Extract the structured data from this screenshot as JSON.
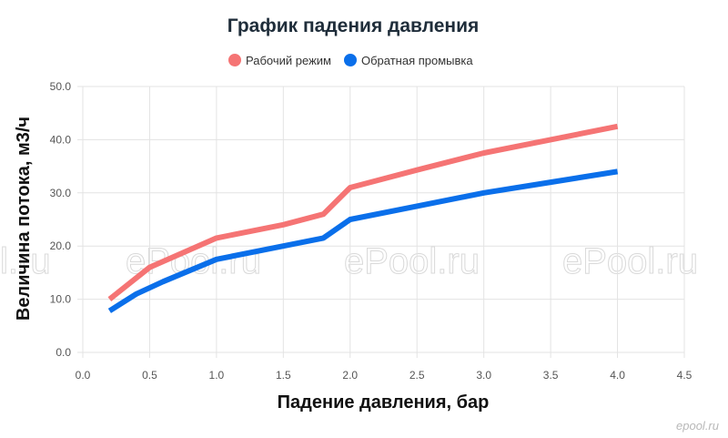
{
  "colors": {
    "working": "#f57474",
    "backwash": "#0a6fea",
    "grid": "#e3e3e3"
  },
  "watermarks": [
    "l.ru",
    "ePool.ru",
    "ePool.ru",
    "ePool.ru"
  ],
  "corner_logo": "epool.ru",
  "chart_data": {
    "type": "line",
    "title": "График падения давления",
    "xlabel": "Падение давления, бар",
    "ylabel": "Величина потока, м3/ч",
    "xlim": [
      0,
      4.5
    ],
    "ylim": [
      0,
      50
    ],
    "x_ticks": [
      "0.0",
      "0.5",
      "1.0",
      "1.5",
      "2.0",
      "2.5",
      "3.0",
      "3.5",
      "4.0",
      "4.5"
    ],
    "y_ticks": [
      "0.0",
      "10.0",
      "20.0",
      "30.0",
      "40.0",
      "50.0"
    ],
    "grid": true,
    "legend_position": "top-center",
    "series": [
      {
        "name": "Рабочий режим",
        "color": "#f57474",
        "points": [
          [
            0.2,
            10.0
          ],
          [
            0.5,
            16.0
          ],
          [
            1.0,
            21.5
          ],
          [
            1.5,
            24.0
          ],
          [
            1.8,
            26.0
          ],
          [
            2.0,
            31.0
          ],
          [
            2.5,
            34.3
          ],
          [
            3.0,
            37.5
          ],
          [
            3.5,
            40.0
          ],
          [
            4.0,
            42.5
          ]
        ]
      },
      {
        "name": "Обратная промывка",
        "color": "#0a6fea",
        "points": [
          [
            0.2,
            7.8
          ],
          [
            0.4,
            11.0
          ],
          [
            0.6,
            13.3
          ],
          [
            1.0,
            17.5
          ],
          [
            1.5,
            20.0
          ],
          [
            1.8,
            21.5
          ],
          [
            2.0,
            25.0
          ],
          [
            2.5,
            27.5
          ],
          [
            3.0,
            30.0
          ],
          [
            3.5,
            32.0
          ],
          [
            4.0,
            34.0
          ]
        ]
      }
    ]
  }
}
